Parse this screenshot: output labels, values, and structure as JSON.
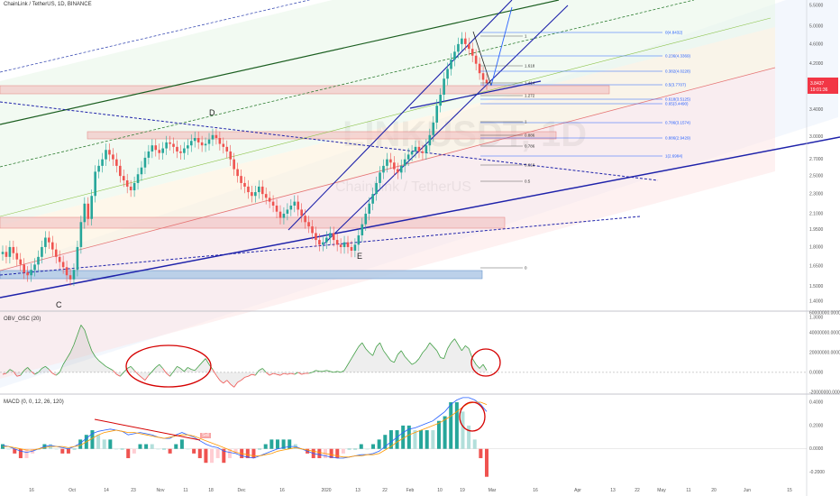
{
  "header": {
    "title": "ChainLink / TetherUS, 1D, BINANCE"
  },
  "watermark": {
    "symbol": "LINKUSDT, 1D",
    "name": "ChainLink / TetherUS"
  },
  "price_badge": {
    "price": "3.8437",
    "countdown": "19:01:36",
    "color": "#f23645"
  },
  "indicators": {
    "obv_title": "OBV_OSC (20)",
    "macd_title": "MACD (0, 0, 12, 26, 120)",
    "sell_label": "Sell"
  },
  "pattern_labels": [
    "C",
    "D",
    "E"
  ],
  "colors": {
    "up": "#26a69a",
    "down": "#ef5350",
    "trend": "#1e22aa",
    "annotation": "#d50000",
    "fib_blue": "#2962ff"
  },
  "chart_data": [
    {
      "type": "candlestick",
      "title": "ChainLink / TetherUS, 1D, BINANCE",
      "x_tick_labels": [
        "16",
        "Oct",
        "14",
        "23",
        "Nov",
        "11",
        "18",
        "Dec",
        "16",
        "2020",
        "13",
        "22",
        "Feb",
        "10",
        "19",
        "Mar",
        "16",
        "Apr",
        "13",
        "22",
        "May",
        "11",
        "20",
        "Jun",
        "15"
      ],
      "y_tick_labels": [
        "5.5000",
        "5.0000",
        "4.6000",
        "4.2000",
        "3.8000",
        "3.4000",
        "3.0000",
        "2.7000",
        "2.5000",
        "2.3000",
        "2.1000",
        "1.9500",
        "1.8000",
        "1.6500",
        "1.5000",
        "1.4000",
        "1.3000"
      ],
      "ylim": [
        1.3,
        5.5
      ],
      "y_scale": "log",
      "close_series": [
        1.76,
        1.72,
        1.8,
        1.75,
        1.7,
        1.66,
        1.6,
        1.58,
        1.62,
        1.66,
        1.72,
        1.8,
        1.88,
        1.84,
        1.78,
        1.72,
        1.68,
        1.64,
        1.58,
        1.55,
        1.62,
        1.8,
        2.02,
        2.2,
        2.05,
        2.28,
        2.55,
        2.62,
        2.7,
        2.82,
        2.76,
        2.7,
        2.62,
        2.5,
        2.45,
        2.38,
        2.34,
        2.42,
        2.52,
        2.6,
        2.72,
        2.8,
        2.88,
        2.82,
        2.78,
        2.84,
        2.92,
        2.9,
        2.86,
        2.8,
        2.78,
        2.84,
        2.88,
        2.94,
        2.98,
        2.92,
        2.88,
        2.9,
        2.96,
        3.02,
        2.98,
        2.9,
        2.86,
        2.8,
        2.7,
        2.58,
        2.5,
        2.42,
        2.38,
        2.32,
        2.28,
        2.32,
        2.38,
        2.3,
        2.26,
        2.22,
        2.18,
        2.12,
        2.06,
        2.1,
        2.14,
        2.18,
        2.22,
        2.14,
        2.08,
        2.02,
        1.98,
        1.92,
        1.86,
        1.82,
        1.84,
        1.88,
        1.92,
        1.86,
        1.82,
        1.8,
        1.84,
        1.8,
        1.77,
        1.82,
        1.9,
        2.0,
        2.1,
        2.2,
        2.3,
        2.42,
        2.54,
        2.62,
        2.7,
        2.66,
        2.58,
        2.54,
        2.62,
        2.7,
        2.76,
        2.8,
        2.86,
        2.8,
        2.78,
        2.88,
        3.02,
        3.2,
        3.46,
        3.64,
        3.92,
        4.1,
        4.28,
        4.44,
        4.6,
        4.72,
        4.6,
        4.5,
        4.36,
        4.2,
        4.02,
        3.9,
        3.84
      ],
      "annotations": {
        "fib_retracement_right": [
          "0(4.8432)",
          "0.236(4.3369)",
          "0.382(4.0228)",
          "0.5(3.7707)",
          "0.618(3.5125)",
          "0.65(3.4490)",
          "0.786(3.1574)",
          "0.886(2.9429)",
          "1(2.6984)"
        ],
        "fib_extension_left": [
          "1",
          "1.618",
          "1.414",
          "1.272",
          "1",
          "0.886",
          "0.786",
          "0.618",
          "0.5",
          "0"
        ]
      }
    },
    {
      "type": "line",
      "title": "OBV_OSC (20)",
      "y_tick_labels": [
        "60000000.0000",
        "40000000.0000",
        "20000000.0000",
        "0.0000",
        "-20000000.0000"
      ],
      "ylim": [
        -22000000,
        62000000
      ],
      "values": [
        -2,
        -1,
        3,
        1,
        -4,
        -3,
        2,
        5,
        1,
        -2,
        0,
        4,
        6,
        3,
        -1,
        -3,
        0,
        8,
        14,
        20,
        28,
        38,
        48,
        43,
        32,
        22,
        16,
        12,
        9,
        6,
        4,
        2,
        -2,
        -4,
        0,
        4,
        6,
        2,
        -2,
        -5,
        -8,
        -3,
        1,
        5,
        8,
        4,
        -1,
        -4,
        1,
        6,
        4,
        1,
        5,
        3,
        2,
        6,
        10,
        14,
        8,
        3,
        -3,
        -8,
        -11,
        -8,
        -12,
        -15,
        -10,
        -8,
        -5,
        -4,
        -2,
        -3,
        2,
        4,
        0,
        -3,
        -1,
        -2,
        -3,
        -1,
        -2,
        -1,
        -2,
        0,
        -2,
        -1,
        -1,
        0,
        2,
        1,
        1,
        2,
        1,
        0,
        1,
        0,
        2,
        8,
        14,
        20,
        26,
        30,
        24,
        20,
        17,
        26,
        30,
        22,
        17,
        12,
        10,
        18,
        22,
        16,
        12,
        8,
        10,
        14,
        20,
        24,
        30,
        26,
        22,
        15,
        14,
        24,
        30,
        34,
        28,
        22,
        27,
        24,
        14,
        8,
        4,
        8,
        2
      ]
    },
    {
      "type": "line",
      "title": "MACD (0, 0, 12, 26, 120)",
      "y_tick_labels": [
        "0.4000",
        "0.2000",
        "0.0000",
        "-0.2000"
      ],
      "ylim": [
        -0.25,
        0.47
      ],
      "series": [
        {
          "values": [
            0.03,
            0.02,
            0.0,
            -0.02,
            -0.03,
            -0.02,
            0.0,
            0.02,
            0.03,
            0.02,
            0.01,
            0.0,
            0.02,
            0.05,
            0.09,
            0.13,
            0.15,
            0.16,
            0.17,
            0.16,
            0.15,
            0.12,
            0.13,
            0.14,
            0.13,
            0.12,
            0.1,
            0.09,
            0.09,
            0.12,
            0.14,
            0.12,
            0.1,
            0.07,
            0.04,
            0.02,
            0.01,
            -0.02,
            -0.03,
            -0.04,
            -0.06,
            -0.07,
            -0.08,
            -0.06,
            -0.04,
            -0.02,
            0.0,
            0.01,
            0.02,
            0.02,
            0.0,
            -0.02,
            -0.04,
            -0.05,
            -0.06,
            -0.07,
            -0.08,
            -0.08,
            -0.07,
            -0.06,
            -0.05,
            -0.05,
            -0.04,
            -0.02,
            0.02,
            0.06,
            0.1,
            0.14,
            0.17,
            0.18,
            0.2,
            0.22,
            0.24,
            0.28,
            0.32,
            0.38,
            0.42,
            0.44,
            0.44,
            0.42,
            0.38,
            0.32
          ]
        },
        {
          "values": [
            0.02,
            0.02,
            0.01,
            0.0,
            -0.01,
            -0.01,
            0.0,
            0.01,
            0.02,
            0.02,
            0.02,
            0.01,
            0.02,
            0.03,
            0.06,
            0.09,
            0.12,
            0.14,
            0.15,
            0.16,
            0.15,
            0.14,
            0.14,
            0.13,
            0.12,
            0.11,
            0.1,
            0.09,
            0.1,
            0.11,
            0.12,
            0.12,
            0.11,
            0.09,
            0.07,
            0.05,
            0.03,
            0.01,
            -0.01,
            -0.03,
            -0.04,
            -0.05,
            -0.06,
            -0.06,
            -0.05,
            -0.04,
            -0.02,
            -0.01,
            0.0,
            0.01,
            0.0,
            -0.01,
            -0.02,
            -0.03,
            -0.04,
            -0.05,
            -0.06,
            -0.07,
            -0.07,
            -0.06,
            -0.06,
            -0.05,
            -0.05,
            -0.04,
            -0.01,
            0.02,
            0.06,
            0.09,
            0.12,
            0.14,
            0.16,
            0.18,
            0.2,
            0.22,
            0.25,
            0.28,
            0.32,
            0.36,
            0.39,
            0.4,
            0.4,
            0.38
          ]
        }
      ]
    }
  ]
}
